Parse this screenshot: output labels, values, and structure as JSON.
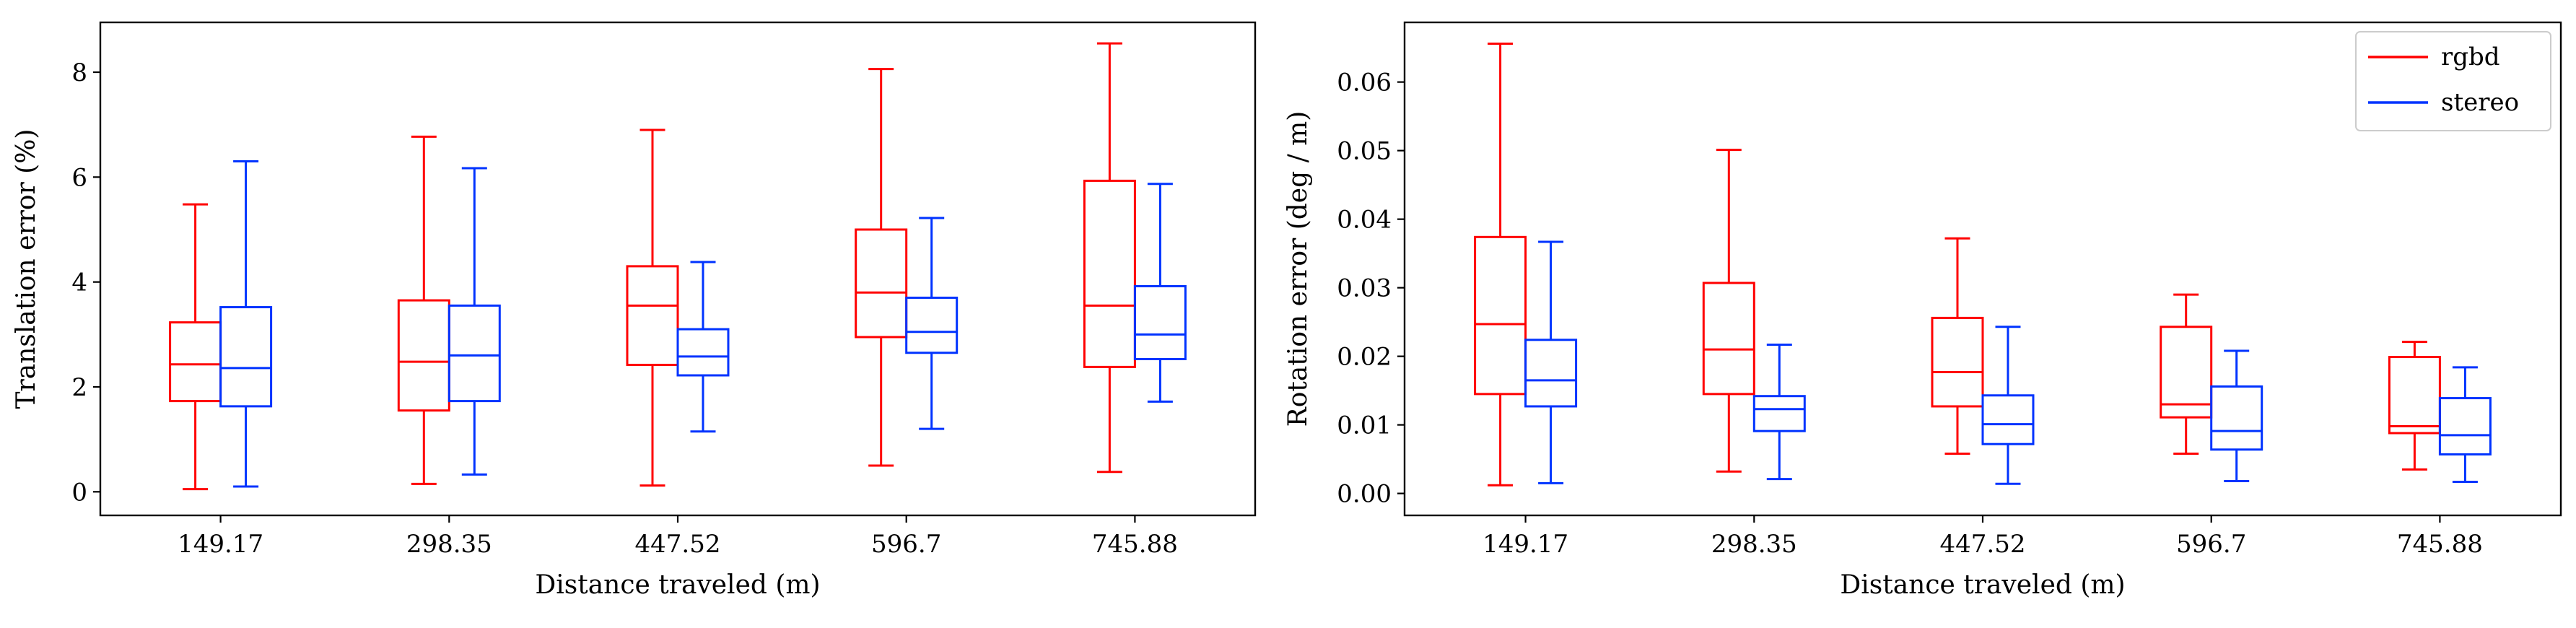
{
  "chart_data": [
    {
      "type": "box",
      "xlabel": "Distance traveled (m)",
      "ylabel": "Translation error (%)",
      "ylim": [
        -0.45,
        8.95
      ],
      "yticks": [
        0,
        2,
        4,
        6,
        8
      ],
      "categories": [
        "149.17",
        "298.35",
        "447.52",
        "596.7",
        "745.88"
      ],
      "grid": false,
      "legend": false,
      "series": [
        {
          "name": "rgbd",
          "color": "#ff0000",
          "boxes": [
            {
              "whislo": 0.05,
              "q1": 1.73,
              "med": 2.43,
              "q3": 3.23,
              "whishi": 5.48
            },
            {
              "whislo": 0.15,
              "q1": 1.55,
              "med": 2.48,
              "q3": 3.65,
              "whishi": 6.77
            },
            {
              "whislo": 0.12,
              "q1": 2.42,
              "med": 3.55,
              "q3": 4.3,
              "whishi": 6.9
            },
            {
              "whislo": 0.5,
              "q1": 2.95,
              "med": 3.8,
              "q3": 5.0,
              "whishi": 8.06
            },
            {
              "whislo": 0.38,
              "q1": 2.38,
              "med": 3.55,
              "q3": 5.93,
              "whishi": 8.55
            }
          ]
        },
        {
          "name": "stereo",
          "color": "#0033ff",
          "boxes": [
            {
              "whislo": 0.1,
              "q1": 1.63,
              "med": 2.36,
              "q3": 3.52,
              "whishi": 6.3
            },
            {
              "whislo": 0.33,
              "q1": 1.73,
              "med": 2.6,
              "q3": 3.55,
              "whishi": 6.17
            },
            {
              "whislo": 1.15,
              "q1": 2.22,
              "med": 2.58,
              "q3": 3.1,
              "whishi": 4.38
            },
            {
              "whislo": 1.2,
              "q1": 2.65,
              "med": 3.05,
              "q3": 3.7,
              "whishi": 5.22
            },
            {
              "whislo": 1.72,
              "q1": 2.53,
              "med": 3.0,
              "q3": 3.92,
              "whishi": 5.87
            }
          ]
        }
      ]
    },
    {
      "type": "box",
      "xlabel": "Distance traveled (m)",
      "ylabel": "Rotation error (deg / m)",
      "ylim": [
        -0.0032,
        0.0687
      ],
      "yticks": [
        0.0,
        0.01,
        0.02,
        0.03,
        0.04,
        0.05,
        0.06
      ],
      "ytick_labels": [
        "0.00",
        "0.01",
        "0.02",
        "0.03",
        "0.04",
        "0.05",
        "0.06"
      ],
      "categories": [
        "149.17",
        "298.35",
        "447.52",
        "596.7",
        "745.88"
      ],
      "grid": false,
      "legend": "top-right",
      "series": [
        {
          "name": "rgbd",
          "color": "#ff0000",
          "boxes": [
            {
              "whislo": 0.0012,
              "q1": 0.0145,
              "med": 0.0247,
              "q3": 0.0374,
              "whishi": 0.0656
            },
            {
              "whislo": 0.0032,
              "q1": 0.0145,
              "med": 0.021,
              "q3": 0.0307,
              "whishi": 0.0501
            },
            {
              "whislo": 0.0058,
              "q1": 0.0127,
              "med": 0.0177,
              "q3": 0.0256,
              "whishi": 0.0372
            },
            {
              "whislo": 0.0058,
              "q1": 0.0111,
              "med": 0.013,
              "q3": 0.0243,
              "whishi": 0.029
            },
            {
              "whislo": 0.0035,
              "q1": 0.0088,
              "med": 0.0098,
              "q3": 0.0199,
              "whishi": 0.0221
            }
          ]
        },
        {
          "name": "stereo",
          "color": "#0033ff",
          "boxes": [
            {
              "whislo": 0.0015,
              "q1": 0.0127,
              "med": 0.0165,
              "q3": 0.0224,
              "whishi": 0.0367
            },
            {
              "whislo": 0.0021,
              "q1": 0.0091,
              "med": 0.0123,
              "q3": 0.0142,
              "whishi": 0.0217
            },
            {
              "whislo": 0.0014,
              "q1": 0.0072,
              "med": 0.0101,
              "q3": 0.0143,
              "whishi": 0.0243
            },
            {
              "whislo": 0.0018,
              "q1": 0.0064,
              "med": 0.0091,
              "q3": 0.0156,
              "whishi": 0.0208
            },
            {
              "whislo": 0.0017,
              "q1": 0.0057,
              "med": 0.0085,
              "q3": 0.0139,
              "whishi": 0.0184
            }
          ]
        }
      ]
    }
  ]
}
